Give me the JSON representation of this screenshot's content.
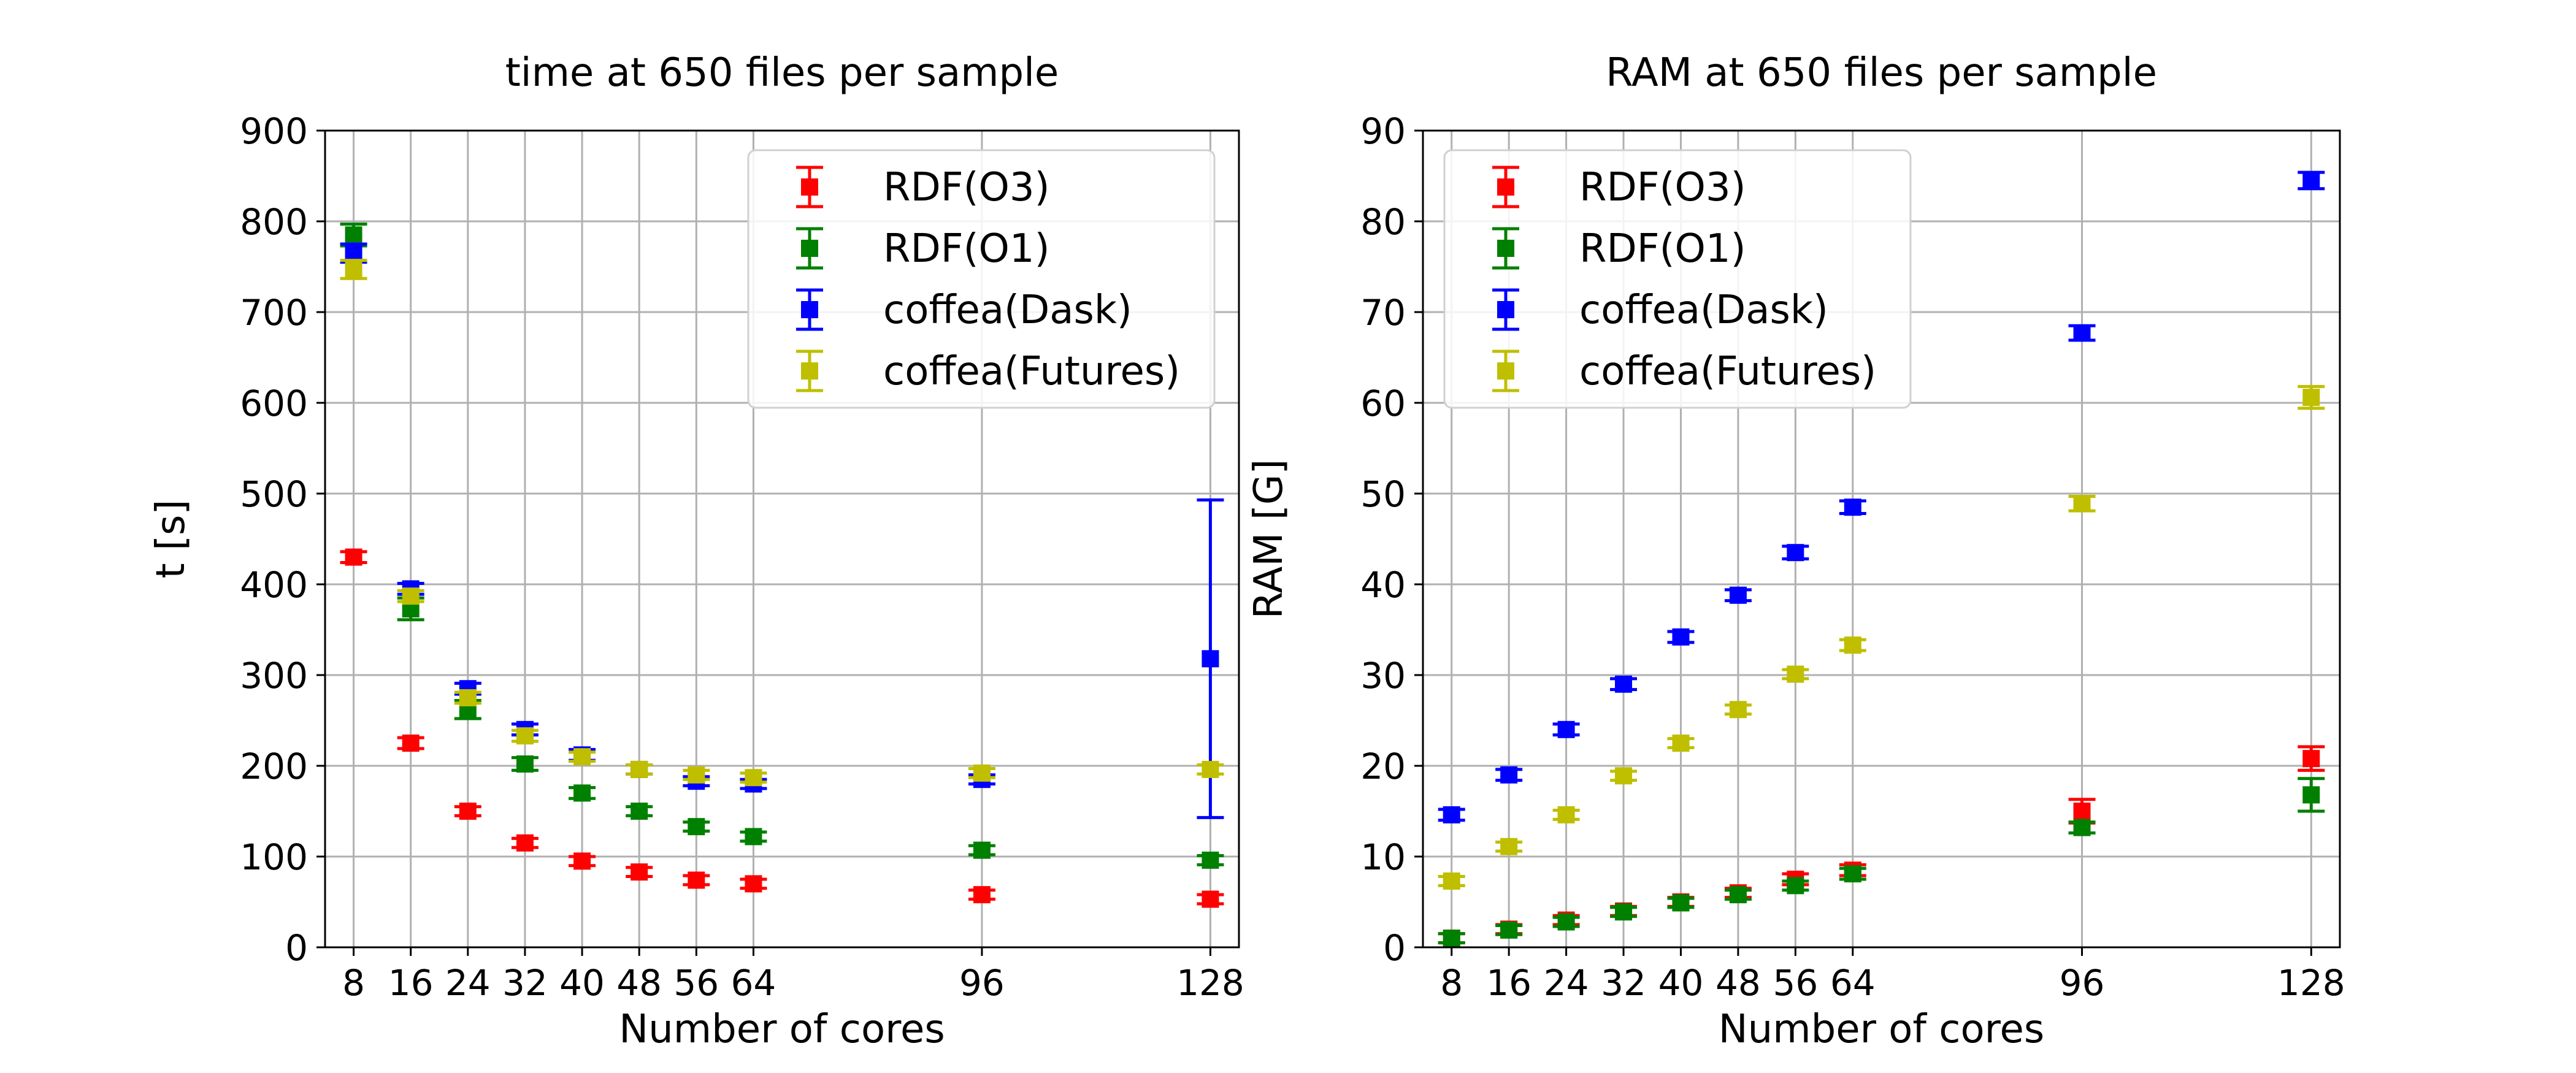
{
  "chart_data": [
    {
      "type": "scatter",
      "title": "time at 650 files per sample",
      "xlabel": "Number of cores",
      "ylabel": "t [s]",
      "xlim": [
        4,
        132
      ],
      "ylim": [
        0,
        900
      ],
      "xticks": [
        8,
        16,
        24,
        32,
        40,
        48,
        56,
        64,
        96,
        128
      ],
      "yticks": [
        0,
        100,
        200,
        300,
        400,
        500,
        600,
        700,
        800,
        900
      ],
      "grid": true,
      "legend_position": "top-right",
      "series": [
        {
          "name": "RDF(O3)",
          "color": "#ff0000",
          "x": [
            8,
            16,
            24,
            32,
            40,
            48,
            56,
            64,
            96,
            128
          ],
          "y": [
            430,
            225,
            150,
            115,
            95,
            83,
            74,
            70,
            58,
            53
          ],
          "yerr": [
            6,
            6,
            5,
            5,
            5,
            5,
            5,
            5,
            5,
            5
          ]
        },
        {
          "name": "RDF(O1)",
          "color": "#008000",
          "x": [
            8,
            16,
            24,
            32,
            40,
            48,
            56,
            64,
            96,
            128
          ],
          "y": [
            785,
            373,
            262,
            202,
            170,
            150,
            133,
            122,
            107,
            96
          ],
          "yerr": [
            12,
            12,
            10,
            7,
            6,
            5,
            5,
            5,
            5,
            5
          ]
        },
        {
          "name": "coffea(Dask)",
          "color": "#0000ff",
          "x": [
            8,
            16,
            24,
            32,
            40,
            48,
            56,
            64,
            96,
            128
          ],
          "y": [
            765,
            395,
            285,
            240,
            212,
            196,
            183,
            180,
            185,
            318
          ],
          "yerr": [
            10,
            6,
            6,
            6,
            6,
            5,
            5,
            5,
            5,
            175
          ]
        },
        {
          "name": "coffea(Futures)",
          "color": "#bfbf00",
          "x": [
            8,
            16,
            24,
            32,
            40,
            48,
            56,
            64,
            96,
            128
          ],
          "y": [
            747,
            387,
            275,
            233,
            210,
            196,
            190,
            187,
            192,
            196
          ],
          "yerr": [
            10,
            6,
            6,
            6,
            5,
            5,
            5,
            5,
            5,
            5
          ]
        }
      ]
    },
    {
      "type": "scatter",
      "title": "RAM at 650 files per sample",
      "xlabel": "Number of cores",
      "ylabel": "RAM [G]",
      "xlim": [
        4,
        132
      ],
      "ylim": [
        0,
        90
      ],
      "xticks": [
        8,
        16,
        24,
        32,
        40,
        48,
        56,
        64,
        96,
        128
      ],
      "yticks": [
        0,
        10,
        20,
        30,
        40,
        50,
        60,
        70,
        80,
        90
      ],
      "grid": true,
      "legend_position": "top-left",
      "series": [
        {
          "name": "RDF(O3)",
          "color": "#ff0000",
          "x": [
            8,
            16,
            24,
            32,
            40,
            48,
            56,
            64,
            96,
            128
          ],
          "y": [
            1.0,
            2.0,
            3.0,
            4.0,
            5.0,
            6.0,
            7.5,
            8.5,
            15.0,
            20.8
          ],
          "yerr": [
            0.5,
            0.5,
            0.5,
            0.5,
            0.5,
            0.5,
            0.6,
            0.6,
            1.3,
            1.3
          ]
        },
        {
          "name": "RDF(O1)",
          "color": "#008000",
          "x": [
            8,
            16,
            24,
            32,
            40,
            48,
            56,
            64,
            96,
            128
          ],
          "y": [
            1.0,
            1.9,
            2.8,
            3.9,
            4.9,
            5.8,
            6.8,
            8.1,
            13.2,
            16.8
          ],
          "yerr": [
            0.5,
            0.5,
            0.5,
            0.5,
            0.5,
            0.5,
            0.5,
            0.6,
            0.6,
            1.8
          ]
        },
        {
          "name": "coffea(Dask)",
          "color": "#0000ff",
          "x": [
            8,
            16,
            24,
            32,
            40,
            48,
            56,
            64,
            96,
            128
          ],
          "y": [
            14.6,
            19.0,
            24.0,
            29.0,
            34.2,
            38.8,
            43.5,
            48.5,
            67.7,
            84.5
          ],
          "yerr": [
            0.6,
            0.6,
            0.6,
            0.6,
            0.6,
            0.6,
            0.7,
            0.7,
            0.8,
            0.9
          ]
        },
        {
          "name": "coffea(Futures)",
          "color": "#bfbf00",
          "x": [
            8,
            16,
            24,
            32,
            40,
            48,
            56,
            64,
            96,
            128
          ],
          "y": [
            7.3,
            11.1,
            14.6,
            18.9,
            22.5,
            26.2,
            30.1,
            33.3,
            48.9,
            60.6
          ],
          "yerr": [
            0.5,
            0.5,
            0.5,
            0.5,
            0.5,
            0.5,
            0.5,
            0.6,
            0.8,
            1.2
          ]
        }
      ]
    }
  ]
}
